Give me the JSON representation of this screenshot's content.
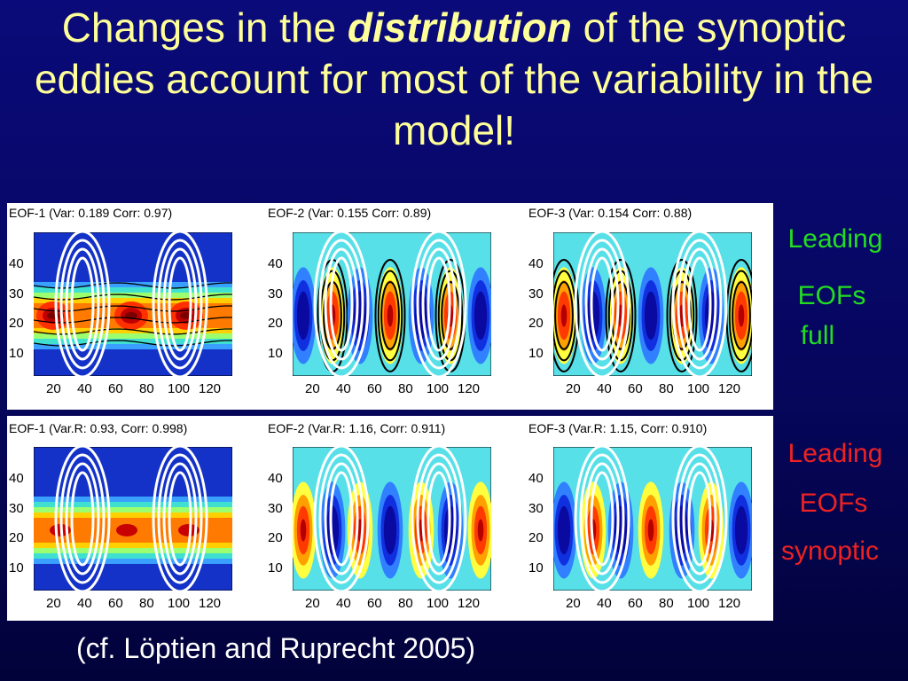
{
  "title": {
    "part1": "Changes in the ",
    "emph": "distribution",
    "part2": " of the synoptic eddies account for most of the variability in the model!"
  },
  "panels_full": [
    {
      "title": "EOF-1 (Var: 0.189 Corr: 0.97)"
    },
    {
      "title": "EOF-2 (Var: 0.155 Corr: 0.89)"
    },
    {
      "title": "EOF-3 (Var: 0.154 Corr: 0.88)"
    }
  ],
  "panels_synoptic": [
    {
      "title": "EOF-1 (Var.R: 0.93, Corr: 0.998)"
    },
    {
      "title": "EOF-2 (Var.R: 1.16, Corr: 0.911)"
    },
    {
      "title": "EOF-3 (Var.R: 1.15, Corr: 0.910)"
    }
  ],
  "y_ticks": [
    "40",
    "30",
    "20",
    "10"
  ],
  "x_ticks": [
    "20",
    "40",
    "60",
    "80",
    "100",
    "120"
  ],
  "labels": {
    "full": [
      "Leading",
      "EOFs",
      "full"
    ],
    "synoptic": [
      "Leading",
      "EOFs",
      "synoptic"
    ]
  },
  "citation": "(cf. Löptien and Ruprecht 2005)",
  "colors": {
    "title": "#ffff99",
    "full_label": "#22dd22",
    "synoptic_label": "#ee2222"
  }
}
